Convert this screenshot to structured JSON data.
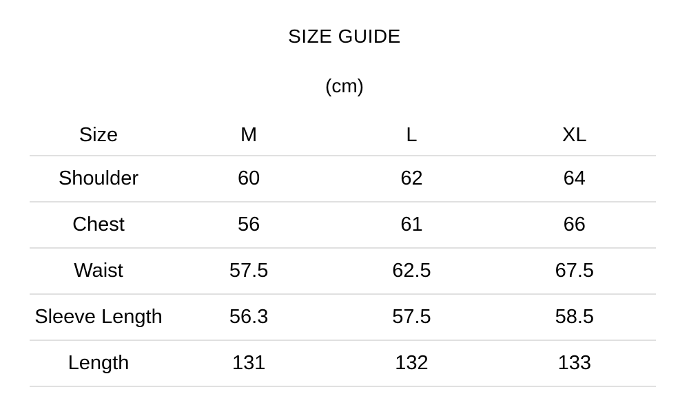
{
  "title": "SIZE GUIDE",
  "unit": "(cm)",
  "table": {
    "columns": [
      "Size",
      "M",
      "L",
      "XL"
    ],
    "rows": [
      {
        "label": "Shoulder",
        "values": [
          "60",
          "62",
          "64"
        ]
      },
      {
        "label": "Chest",
        "values": [
          "56",
          "61",
          "66"
        ]
      },
      {
        "label": "Waist",
        "values": [
          "57.5",
          "62.5",
          "67.5"
        ]
      },
      {
        "label": "Sleeve Length",
        "values": [
          "56.3",
          "57.5",
          "58.5"
        ]
      },
      {
        "label": "Length",
        "values": [
          "131",
          "132",
          "133"
        ]
      }
    ]
  },
  "colors": {
    "divider": "#e0e0e0",
    "text": "#000000",
    "background": "#ffffff"
  }
}
